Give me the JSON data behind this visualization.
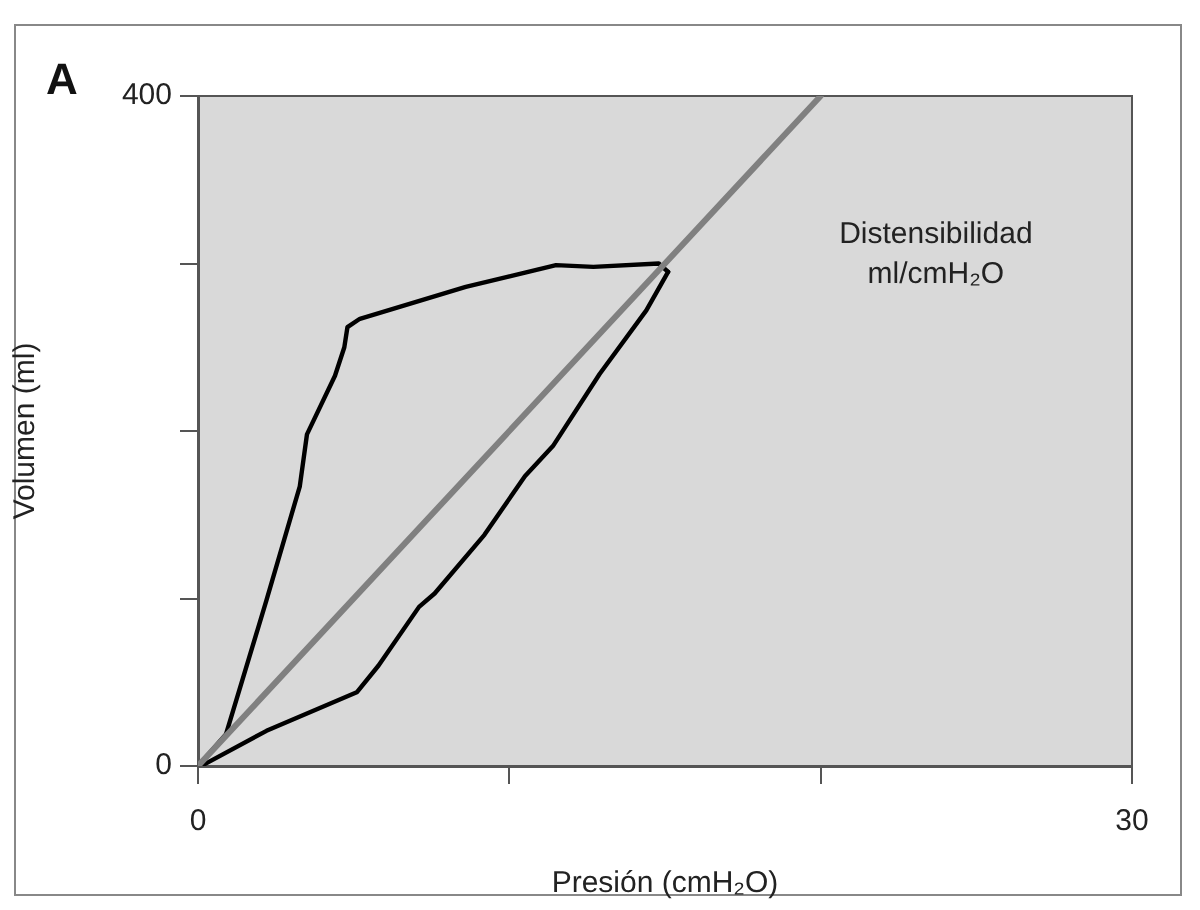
{
  "chart_data": {
    "type": "line",
    "title": "A",
    "xlabel": "Presión (cmH₂O)",
    "ylabel": "Volumen (ml)",
    "xlim": [
      0,
      30
    ],
    "xticks": [
      0,
      {
        "value": 10,
        "label": null
      },
      {
        "value": 20,
        "label": null
      },
      30
    ],
    "ylim": [
      0,
      400
    ],
    "yticks": [
      0,
      {
        "value": 100,
        "label": null
      },
      {
        "value": 200,
        "label": null
      },
      {
        "value": 300,
        "label": null
      },
      400
    ],
    "grid": false,
    "legend": false,
    "marker": "none",
    "line_style": "solid",
    "annotations": [
      "Distensibilidad ml/cmH₂O"
    ],
    "series": [
      {
        "color": "#808080",
        "x": [
          0,
          20
        ],
        "values": [
          0,
          400
        ]
      },
      {
        "color": "#000000",
        "x": [
          0,
          0.2,
          2.2,
          5.1,
          5.8,
          7.1,
          7.6,
          9.2,
          10.5,
          11.4,
          12.9,
          14.4,
          15.1
        ],
        "values": [
          0,
          1,
          21,
          44,
          60,
          95,
          103,
          138,
          173,
          191,
          234,
          272,
          295
        ]
      },
      {
        "color": "#000000",
        "x": [
          0,
          0.9,
          2.2,
          3.27,
          3.5,
          4.4,
          4.7,
          4.8,
          5.2,
          8.6,
          11.5,
          12.7,
          14.8,
          15.1
        ],
        "values": [
          0,
          19,
          99,
          167,
          198,
          233,
          250,
          262,
          267,
          286,
          299,
          298,
          300,
          295
        ]
      }
    ]
  }
}
